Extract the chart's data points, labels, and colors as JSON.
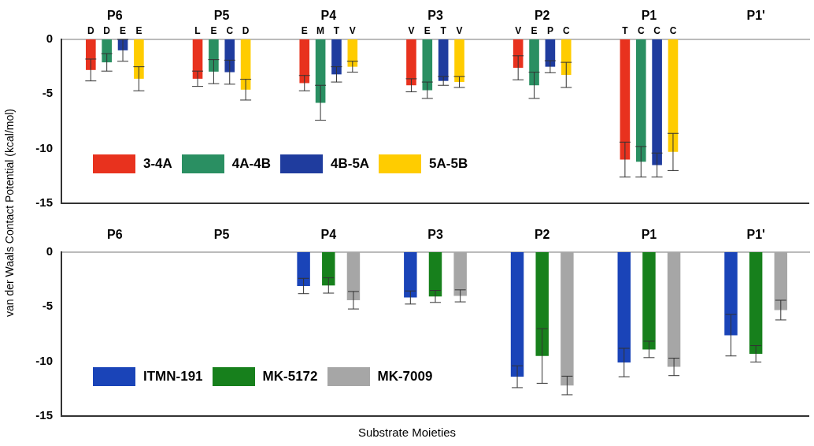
{
  "chart_data": [
    {
      "type": "bar",
      "ylabel": "van der Waals Contact Potential (kcal/mol)",
      "categories": [
        "P6",
        "P5",
        "P4",
        "P3",
        "P2",
        "P1",
        "P1'"
      ],
      "ylim": [
        -15,
        0
      ],
      "yticks": [
        0,
        -5,
        -10,
        -15
      ],
      "legend": "bottom left",
      "series": [
        {
          "name": "3-4A",
          "color": "#e8321e",
          "values": [
            -2.8,
            -3.6,
            -4.0,
            -4.2,
            -2.6,
            -11.0,
            null
          ],
          "errors": [
            1.0,
            0.7,
            0.7,
            0.6,
            1.1,
            1.6,
            null
          ],
          "value_labels": [
            "D",
            "L",
            "E",
            "V",
            "V",
            "T",
            null
          ]
        },
        {
          "name": "4A-4B",
          "color": "#2a8f62",
          "values": [
            -2.1,
            -2.95,
            -5.8,
            -4.65,
            -4.2,
            -11.2,
            null
          ],
          "errors": [
            0.8,
            1.1,
            1.6,
            0.75,
            1.2,
            1.4,
            null
          ],
          "value_labels": [
            "D",
            "E",
            "M",
            "E",
            "E",
            "C",
            null
          ]
        },
        {
          "name": "4B-5A",
          "color": "#1f3c9e",
          "values": [
            -1.0,
            -3.0,
            -3.2,
            -3.8,
            -2.5,
            -11.5,
            null
          ],
          "errors": [
            1.0,
            1.1,
            0.7,
            0.4,
            0.55,
            1.1,
            null
          ],
          "value_labels": [
            "E",
            "C",
            "T",
            "T",
            "P",
            "C",
            null
          ]
        },
        {
          "name": "5A-5B",
          "color": "#ffcc00",
          "values": [
            -3.6,
            -4.6,
            -2.5,
            -3.9,
            -3.25,
            -10.3,
            null
          ],
          "errors": [
            1.1,
            0.95,
            0.5,
            0.5,
            1.15,
            1.7,
            null
          ],
          "value_labels": [
            "E",
            "D",
            "V",
            "V",
            "C",
            "C",
            null
          ]
        }
      ]
    },
    {
      "type": "bar",
      "xlabel": "Substrate Moieties",
      "categories": [
        "P6",
        "P5",
        "P4",
        "P3",
        "P2",
        "P1",
        "P1'"
      ],
      "ylim": [
        -15,
        0
      ],
      "yticks": [
        0,
        -5,
        -10,
        -15
      ],
      "legend": "bottom left",
      "series": [
        {
          "name": "ITMN-191",
          "color": "#1a44b8",
          "values": [
            null,
            null,
            -3.1,
            -4.15,
            -11.4,
            -10.1,
            -7.6
          ],
          "errors": [
            null,
            null,
            0.7,
            0.6,
            1.0,
            1.3,
            1.9
          ]
        },
        {
          "name": "MK-5172",
          "color": "#17801c",
          "values": [
            null,
            null,
            -3.05,
            -4.05,
            -9.5,
            -8.9,
            -9.3
          ],
          "errors": [
            null,
            null,
            0.7,
            0.55,
            2.5,
            0.75,
            0.75
          ]
        },
        {
          "name": "MK-7009",
          "color": "#a6a6a6",
          "values": [
            null,
            null,
            -4.4,
            -4.0,
            -12.2,
            -10.5,
            -5.3
          ],
          "errors": [
            null,
            null,
            0.8,
            0.55,
            0.85,
            0.8,
            0.9
          ]
        }
      ]
    }
  ]
}
